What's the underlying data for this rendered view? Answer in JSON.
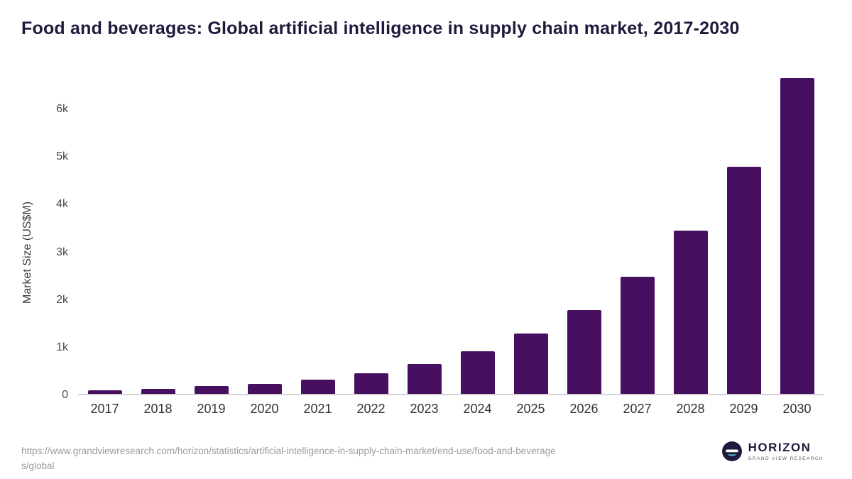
{
  "chart_data": {
    "type": "bar",
    "title": "Food and beverages: Global artificial intelligence in supply chain market, 2017-2030",
    "ylabel": "Market Size (US$M)",
    "xlabel": "",
    "categories": [
      "2017",
      "2018",
      "2019",
      "2020",
      "2021",
      "2022",
      "2023",
      "2024",
      "2025",
      "2026",
      "2027",
      "2028",
      "2029",
      "2030"
    ],
    "values": [
      75,
      110,
      165,
      215,
      305,
      440,
      625,
      900,
      1270,
      1760,
      2470,
      3440,
      4790,
      6650
    ],
    "yticks": [
      {
        "label": "0",
        "value": 0
      },
      {
        "label": "1k",
        "value": 1000
      },
      {
        "label": "2k",
        "value": 2000
      },
      {
        "label": "3k",
        "value": 3000
      },
      {
        "label": "4k",
        "value": 4000
      },
      {
        "label": "5k",
        "value": 5000
      },
      {
        "label": "6k",
        "value": 6000
      }
    ],
    "ylim": [
      0,
      6850
    ],
    "grid": false,
    "legend": "none",
    "bar_color": "#470f5f"
  },
  "footer": {
    "url_line1": "https://www.grandviewresearch.com/horizon/statistics/artificial-intelligence-in-supply-chain-market/end-use/food-and-beverage",
    "url_line2": "s/global",
    "logo": {
      "name": "HORIZON",
      "subtitle": "GRAND VIEW RESEARCH"
    }
  },
  "colors": {
    "bar": "#470f5f",
    "title": "#1e1b3e",
    "axis_text": "#4a4a4a",
    "logo_navy": "#1e1b3e",
    "logo_teal": "#4cc8c0",
    "url_text": "#9b9b9b"
  }
}
